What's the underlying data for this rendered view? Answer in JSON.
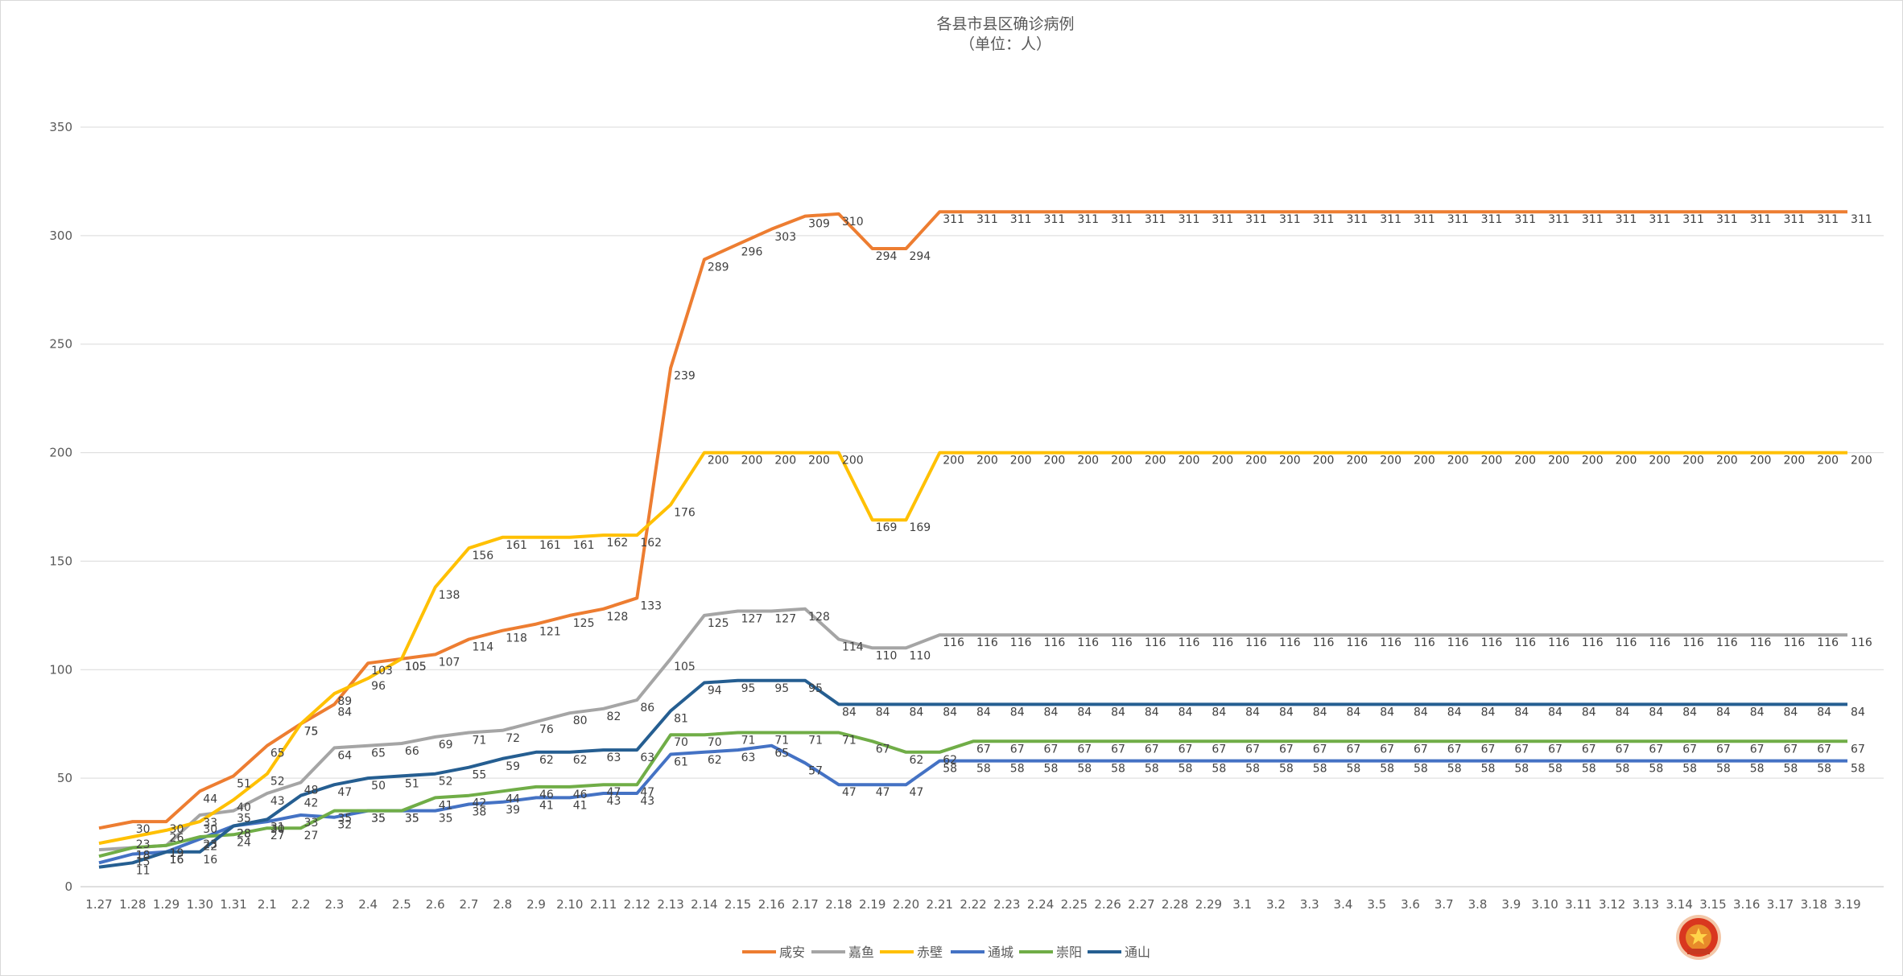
{
  "chart_data": {
    "type": "line",
    "title": "各县市县区确诊病例",
    "subtitle": "（单位：人）",
    "xlabel": "",
    "ylabel": "",
    "ylim": [
      0,
      350
    ],
    "yticks": [
      0,
      50,
      100,
      150,
      200,
      250,
      300,
      350
    ],
    "grid": true,
    "legend_position": "bottom",
    "categories": [
      "1.27",
      "1.28",
      "1.29",
      "1.30",
      "1.31",
      "2.1",
      "2.2",
      "2.3",
      "2.4",
      "2.5",
      "2.6",
      "2.7",
      "2.8",
      "2.9",
      "2.10",
      "2.11",
      "2.12",
      "2.13",
      "2.14",
      "2.15",
      "2.16",
      "2.17",
      "2.18",
      "2.19",
      "2.20",
      "2.21",
      "2.22",
      "2.23",
      "2.24",
      "2.25",
      "2.26",
      "2.27",
      "2.28",
      "2.29",
      "3.1",
      "3.2",
      "3.3",
      "3.4",
      "3.5",
      "3.6",
      "3.7",
      "3.8",
      "3.9",
      "3.10",
      "3.11",
      "3.12",
      "3.13",
      "3.14",
      "3.15",
      "3.16",
      "3.17",
      "3.18",
      "3.19"
    ],
    "series": [
      {
        "name": "咸安",
        "color": "#ED7D31",
        "values": [
          27,
          30,
          30,
          44,
          51,
          65,
          75,
          84,
          103,
          105,
          107,
          114,
          118,
          121,
          125,
          128,
          133,
          239,
          289,
          296,
          303,
          309,
          310,
          294,
          294,
          311,
          311,
          311,
          311,
          311,
          311,
          311,
          311,
          311,
          311,
          311,
          311,
          311,
          311,
          311,
          311,
          311,
          311,
          311,
          311,
          311,
          311,
          311,
          311,
          311,
          311,
          311,
          311
        ]
      },
      {
        "name": "嘉鱼",
        "color": "#A5A5A5",
        "values": [
          17,
          18,
          19,
          33,
          35,
          43,
          48,
          64,
          65,
          66,
          69,
          71,
          72,
          76,
          80,
          82,
          86,
          105,
          125,
          127,
          127,
          128,
          114,
          110,
          110,
          116,
          116,
          116,
          116,
          116,
          116,
          116,
          116,
          116,
          116,
          116,
          116,
          116,
          116,
          116,
          116,
          116,
          116,
          116,
          116,
          116,
          116,
          116,
          116,
          116,
          116,
          116,
          116
        ]
      },
      {
        "name": "赤壁",
        "color": "#FFC000",
        "values": [
          20,
          23,
          26,
          30,
          40,
          52,
          75,
          89,
          96,
          105,
          138,
          156,
          161,
          161,
          161,
          162,
          162,
          176,
          200,
          200,
          200,
          200,
          200,
          169,
          169,
          200,
          200,
          200,
          200,
          200,
          200,
          200,
          200,
          200,
          200,
          200,
          200,
          200,
          200,
          200,
          200,
          200,
          200,
          200,
          200,
          200,
          200,
          200,
          200,
          200,
          200,
          200,
          200
        ]
      },
      {
        "name": "通城",
        "color": "#4472C4",
        "values": [
          11,
          15,
          16,
          22,
          28,
          30,
          33,
          32,
          35,
          35,
          35,
          38,
          39,
          41,
          41,
          43,
          43,
          61,
          62,
          63,
          65,
          57,
          47,
          47,
          47,
          58,
          58,
          58,
          58,
          58,
          58,
          58,
          58,
          58,
          58,
          58,
          58,
          58,
          58,
          58,
          58,
          58,
          58,
          58,
          58,
          58,
          58,
          58,
          58,
          58,
          58,
          58,
          58
        ]
      },
      {
        "name": "崇阳",
        "color": "#70AD47",
        "values": [
          14,
          18,
          19,
          23,
          24,
          27,
          27,
          35,
          35,
          35,
          41,
          42,
          44,
          46,
          46,
          47,
          47,
          70,
          70,
          71,
          71,
          71,
          71,
          67,
          62,
          62,
          67,
          67,
          67,
          67,
          67,
          67,
          67,
          67,
          67,
          67,
          67,
          67,
          67,
          67,
          67,
          67,
          67,
          67,
          67,
          67,
          67,
          67,
          67,
          67,
          67,
          67,
          67
        ]
      },
      {
        "name": "通山",
        "color": "#255E91",
        "values": [
          9,
          11,
          16,
          16,
          28,
          31,
          42,
          47,
          50,
          51,
          52,
          55,
          59,
          62,
          62,
          63,
          63,
          81,
          94,
          95,
          95,
          95,
          84,
          84,
          84,
          84,
          84,
          84,
          84,
          84,
          84,
          84,
          84,
          84,
          84,
          84,
          84,
          84,
          84,
          84,
          84,
          84,
          84,
          84,
          84,
          84,
          84,
          84,
          84,
          84,
          84,
          84,
          84
        ]
      }
    ]
  }
}
